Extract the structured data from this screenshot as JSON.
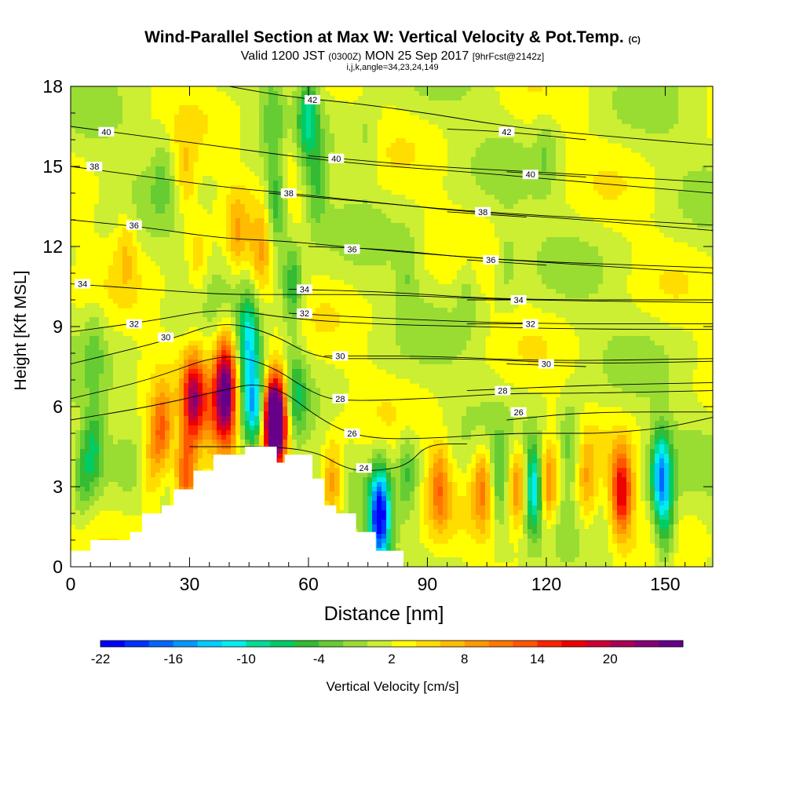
{
  "title": {
    "main": "Wind-Parallel Section at Max W: Vertical Velocity & Pot.Temp.",
    "copyright": "(C)",
    "valid_prefix": "Valid 1200 JST",
    "valid_z": "(0300Z)",
    "valid_date": "MON 25 Sep 2017",
    "forecast": "[9hrFcst@2142z]",
    "indices": "i,j,k,angle=34,23,24,149"
  },
  "chart_data": {
    "type": "heatmap",
    "xlabel": "Distance [nm]",
    "ylabel": "Height [Kft MSL]",
    "xlim": [
      0,
      162
    ],
    "ylim": [
      0,
      18
    ],
    "x_ticks": [
      0,
      30,
      60,
      90,
      120,
      150
    ],
    "y_ticks": [
      0,
      3,
      6,
      9,
      12,
      15,
      18
    ],
    "colorbar": {
      "label": "Vertical Velocity [cm/s]",
      "tick_labels": [
        "-22",
        "-16",
        "-10",
        "-4",
        "2",
        "8",
        "14",
        "20"
      ],
      "colors": [
        "#0000ff",
        "#0033ff",
        "#0066ff",
        "#0099ff",
        "#00ccff",
        "#00eeee",
        "#00dd99",
        "#00cc66",
        "#33bb33",
        "#66cc33",
        "#99dd33",
        "#ccee33",
        "#ffff00",
        "#ffdd00",
        "#ffbb00",
        "#ff9900",
        "#ff7700",
        "#ff5500",
        "#ff2200",
        "#ee0000",
        "#cc0033",
        "#aa0055",
        "#880077",
        "#660088"
      ]
    },
    "terrain_profile": [
      [
        0,
        0.6
      ],
      [
        5,
        0.6
      ],
      [
        5,
        1.0
      ],
      [
        15,
        1.0
      ],
      [
        15,
        1.3
      ],
      [
        18,
        1.3
      ],
      [
        18,
        2.0
      ],
      [
        23,
        2.0
      ],
      [
        23,
        2.3
      ],
      [
        26,
        2.3
      ],
      [
        26,
        2.9
      ],
      [
        31,
        2.9
      ],
      [
        31,
        3.6
      ],
      [
        36,
        3.6
      ],
      [
        36,
        4.2
      ],
      [
        44,
        4.2
      ],
      [
        44,
        4.5
      ],
      [
        52,
        4.5
      ],
      [
        52,
        3.9
      ],
      [
        54,
        3.9
      ],
      [
        54,
        4.2
      ],
      [
        61,
        4.2
      ],
      [
        61,
        3.3
      ],
      [
        64,
        3.3
      ],
      [
        64,
        2.3
      ],
      [
        67,
        2.3
      ],
      [
        67,
        2.0
      ],
      [
        72,
        2.0
      ],
      [
        72,
        1.3
      ],
      [
        77,
        1.3
      ],
      [
        77,
        0.6
      ],
      [
        84,
        0.6
      ],
      [
        84,
        0
      ]
    ],
    "w_features": [
      {
        "x": 35,
        "y": 5.8,
        "w": 6.5
      },
      {
        "x": 31,
        "y": 6.3,
        "w": 18
      },
      {
        "x": 23,
        "y": 5.0,
        "w": 11
      },
      {
        "x": 29,
        "y": 3.5,
        "w": 12
      },
      {
        "x": 20,
        "y": 3.8,
        "w": 6
      },
      {
        "x": 39,
        "y": 7.5,
        "w": 11
      },
      {
        "x": 39,
        "y": 6.0,
        "w": 20
      },
      {
        "x": 45,
        "y": 8.5,
        "w": -12
      },
      {
        "x": 46,
        "y": 6.0,
        "w": -14
      },
      {
        "x": 52,
        "y": 5.5,
        "w": 22
      },
      {
        "x": 51,
        "y": 5.5,
        "w": 20
      },
      {
        "x": 57,
        "y": 6.5,
        "w": -6
      },
      {
        "x": 56,
        "y": 10.5,
        "w": -8
      },
      {
        "x": 66,
        "y": 3.0,
        "w": 9
      },
      {
        "x": 78,
        "y": 2.2,
        "w": -16
      },
      {
        "x": 78,
        "y": 1.2,
        "w": -10
      },
      {
        "x": 85,
        "y": 3.5,
        "w": -6
      },
      {
        "x": 93,
        "y": 3.0,
        "w": 9
      },
      {
        "x": 104,
        "y": 3.0,
        "w": 9
      },
      {
        "x": 108,
        "y": 3.0,
        "w": -6
      },
      {
        "x": 113,
        "y": 3.0,
        "w": 10
      },
      {
        "x": 117,
        "y": 3.0,
        "w": -16
      },
      {
        "x": 120,
        "y": 3.0,
        "w": 12
      },
      {
        "x": 126,
        "y": 4.5,
        "w": -6
      },
      {
        "x": 130,
        "y": 3.0,
        "w": 6
      },
      {
        "x": 139,
        "y": 2.8,
        "w": 16
      },
      {
        "x": 149,
        "y": 3.5,
        "w": -16
      },
      {
        "x": 150,
        "y": 1.5,
        "w": -8
      },
      {
        "x": 3,
        "y": 3.5,
        "w": -6
      },
      {
        "x": 6,
        "y": 4.5,
        "w": -7
      },
      {
        "x": 6,
        "y": 8.5,
        "w": -3
      },
      {
        "x": 29,
        "y": 14.5,
        "w": 5
      },
      {
        "x": 32,
        "y": 11.5,
        "w": 4
      },
      {
        "x": 42,
        "y": 12.5,
        "w": 5
      },
      {
        "x": 48,
        "y": 11.5,
        "w": 6
      },
      {
        "x": 52,
        "y": 13.5,
        "w": -9
      },
      {
        "x": 51,
        "y": 17.0,
        "w": -4
      },
      {
        "x": 55,
        "y": 15.0,
        "w": 4
      },
      {
        "x": 60,
        "y": 17.0,
        "w": -9
      },
      {
        "x": 62,
        "y": 14.0,
        "w": -5
      },
      {
        "x": 14,
        "y": 12.0,
        "w": 4
      },
      {
        "x": 23,
        "y": 15.0,
        "w": -3
      },
      {
        "x": 85,
        "y": 11.0,
        "w": -3
      },
      {
        "x": 100,
        "y": 10.5,
        "w": -3
      },
      {
        "x": 110,
        "y": 11.5,
        "w": -3
      },
      {
        "x": 120,
        "y": 15.5,
        "w": -3
      },
      {
        "x": 75,
        "y": 16.0,
        "w": -3
      }
    ],
    "isentropes": [
      {
        "theta": 24,
        "points": [
          [
            30,
            4.5
          ],
          [
            60,
            4.5
          ],
          [
            70,
            3.6
          ],
          [
            78,
            3.6
          ],
          [
            85,
            3.8
          ],
          [
            90,
            4.6
          ],
          [
            100,
            4.6
          ]
        ],
        "label": {
          "x": 74,
          "y": 3.7
        }
      },
      {
        "theta": 26,
        "points": [
          [
            0,
            5.5
          ],
          [
            20,
            6.0
          ],
          [
            35,
            6.5
          ],
          [
            50,
            7.0
          ],
          [
            65,
            5.3
          ],
          [
            75,
            4.8
          ],
          [
            90,
            4.8
          ],
          [
            110,
            5.0
          ],
          [
            125,
            5.0
          ],
          [
            135,
            5.0
          ],
          [
            150,
            5.2
          ],
          [
            162,
            5.6
          ]
        ],
        "label": {
          "x": 71,
          "y": 5.0
        }
      },
      {
        "theta": 26,
        "points": [
          [
            110,
            5.5
          ],
          [
            130,
            5.8
          ],
          [
            162,
            5.8
          ]
        ],
        "label": {
          "x": 113,
          "y": 5.8
        }
      },
      {
        "theta": 28,
        "points": [
          [
            0,
            6.3
          ],
          [
            20,
            7.0
          ],
          [
            38,
            8.0
          ],
          [
            50,
            7.6
          ],
          [
            62,
            6.4
          ],
          [
            70,
            6.2
          ],
          [
            90,
            6.3
          ],
          [
            110,
            6.5
          ],
          [
            130,
            6.5
          ],
          [
            162,
            6.6
          ]
        ],
        "label": {
          "x": 68,
          "y": 6.3
        }
      },
      {
        "theta": 28,
        "points": [
          [
            100,
            6.6
          ],
          [
            130,
            6.8
          ],
          [
            162,
            6.9
          ]
        ],
        "label": {
          "x": 109,
          "y": 6.6
        }
      },
      {
        "theta": 30,
        "points": [
          [
            0,
            7.6
          ],
          [
            25,
            8.5
          ],
          [
            38,
            9.2
          ],
          [
            50,
            8.8
          ],
          [
            62,
            7.8
          ],
          [
            75,
            7.8
          ],
          [
            100,
            7.8
          ],
          [
            130,
            7.6
          ],
          [
            162,
            7.7
          ]
        ],
        "label": {
          "x": 24,
          "y": 8.6
        }
      },
      {
        "theta": 30,
        "points": [
          [
            64,
            7.9
          ],
          [
            90,
            7.9
          ],
          [
            120,
            7.7
          ],
          [
            162,
            7.8
          ]
        ],
        "label": {
          "x": 68,
          "y": 7.9
        }
      },
      {
        "theta": 30,
        "points": [
          [
            110,
            7.6
          ],
          [
            130,
            7.5
          ]
        ],
        "label": {
          "x": 120,
          "y": 7.6
        }
      },
      {
        "theta": 32,
        "points": [
          [
            0,
            8.8
          ],
          [
            20,
            9.2
          ],
          [
            38,
            9.7
          ],
          [
            55,
            9.3
          ],
          [
            75,
            9.1
          ],
          [
            100,
            9.0
          ],
          [
            130,
            8.9
          ],
          [
            162,
            8.9
          ]
        ],
        "label": {
          "x": 16,
          "y": 9.1
        }
      },
      {
        "theta": 32,
        "points": [
          [
            55,
            9.5
          ],
          [
            80,
            9.3
          ],
          [
            115,
            9.1
          ],
          [
            162,
            9.1
          ]
        ],
        "label": {
          "x": 59,
          "y": 9.5
        }
      },
      {
        "theta": 32,
        "points": [
          [
            100,
            9.1
          ],
          [
            118,
            9.1
          ]
        ],
        "label": {
          "x": 116,
          "y": 9.1
        }
      },
      {
        "theta": 34,
        "points": [
          [
            0,
            10.6
          ],
          [
            20,
            10.4
          ],
          [
            38,
            10.2
          ],
          [
            55,
            10.2
          ],
          [
            80,
            10.2
          ],
          [
            110,
            10.0
          ],
          [
            162,
            9.9
          ]
        ],
        "label": {
          "x": 3,
          "y": 10.6
        }
      },
      {
        "theta": 34,
        "points": [
          [
            55,
            10.4
          ],
          [
            80,
            10.3
          ],
          [
            110,
            10.0
          ],
          [
            162,
            10.0
          ]
        ],
        "label": {
          "x": 59,
          "y": 10.4
        }
      },
      {
        "theta": 34,
        "points": [
          [
            100,
            10.0
          ],
          [
            115,
            10.0
          ]
        ],
        "label": {
          "x": 113,
          "y": 10.0
        }
      },
      {
        "theta": 36,
        "points": [
          [
            0,
            13.0
          ],
          [
            20,
            12.7
          ],
          [
            38,
            12.3
          ],
          [
            55,
            12.2
          ],
          [
            75,
            11.9
          ],
          [
            100,
            11.6
          ],
          [
            130,
            11.3
          ],
          [
            162,
            11.0
          ]
        ],
        "label": {
          "x": 16,
          "y": 12.8
        }
      },
      {
        "theta": 36,
        "points": [
          [
            60,
            12.0
          ],
          [
            80,
            11.9
          ],
          [
            105,
            11.5
          ],
          [
            162,
            11.2
          ]
        ],
        "label": {
          "x": 71,
          "y": 11.9
        }
      },
      {
        "theta": 36,
        "points": [
          [
            100,
            11.5
          ],
          [
            120,
            11.3
          ]
        ],
        "label": {
          "x": 106,
          "y": 11.5
        }
      },
      {
        "theta": 38,
        "points": [
          [
            0,
            15.0
          ],
          [
            20,
            14.6
          ],
          [
            40,
            14.2
          ],
          [
            55,
            14.0
          ],
          [
            80,
            13.6
          ],
          [
            100,
            13.3
          ],
          [
            130,
            13.0
          ],
          [
            162,
            12.6
          ]
        ],
        "label": {
          "x": 6,
          "y": 15.0
        }
      },
      {
        "theta": 38,
        "points": [
          [
            50,
            14.0
          ],
          [
            80,
            13.6
          ],
          [
            102,
            13.3
          ],
          [
            162,
            12.8
          ]
        ],
        "label": {
          "x": 55,
          "y": 14.0
        }
      },
      {
        "theta": 38,
        "points": [
          [
            95,
            13.3
          ],
          [
            115,
            13.1
          ]
        ],
        "label": {
          "x": 104,
          "y": 13.3
        }
      },
      {
        "theta": 40,
        "points": [
          [
            0,
            16.5
          ],
          [
            20,
            16.1
          ],
          [
            40,
            15.7
          ],
          [
            60,
            15.3
          ],
          [
            80,
            15.0
          ],
          [
            100,
            14.8
          ],
          [
            130,
            14.4
          ],
          [
            162,
            14.0
          ]
        ],
        "label": {
          "x": 9,
          "y": 16.3
        }
      },
      {
        "theta": 40,
        "points": [
          [
            60,
            15.4
          ],
          [
            90,
            15.0
          ],
          [
            117,
            14.8
          ],
          [
            162,
            14.4
          ]
        ],
        "label": {
          "x": 67,
          "y": 15.3
        }
      },
      {
        "theta": 40,
        "points": [
          [
            110,
            14.8
          ],
          [
            130,
            14.6
          ]
        ],
        "label": {
          "x": 116,
          "y": 14.7
        }
      },
      {
        "theta": 42,
        "points": [
          [
            40,
            18.0
          ],
          [
            55,
            17.6
          ],
          [
            70,
            17.4
          ],
          [
            90,
            17.0
          ],
          [
            110,
            16.5
          ],
          [
            130,
            16.2
          ],
          [
            162,
            15.8
          ]
        ],
        "label": {
          "x": 61,
          "y": 17.5
        }
      },
      {
        "theta": 42,
        "points": [
          [
            95,
            16.4
          ],
          [
            110,
            16.3
          ],
          [
            130,
            16.0
          ]
        ],
        "label": {
          "x": 110,
          "y": 16.3
        }
      }
    ]
  }
}
